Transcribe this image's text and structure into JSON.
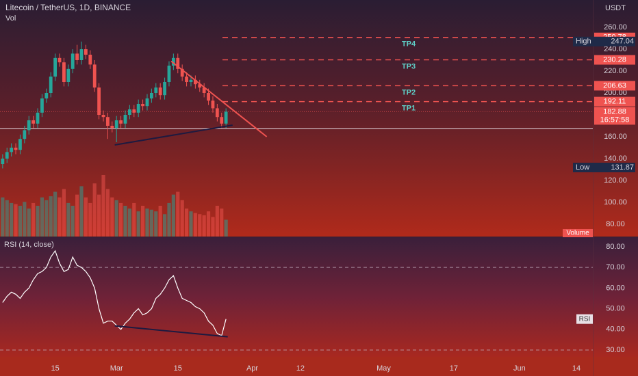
{
  "header": {
    "title": "Litecoin / TetherUS, 1D, BINANCE",
    "volume_label": "Vol",
    "currency": "USDT"
  },
  "chart_data": [
    {
      "type": "candlestick",
      "x": [
        34,
        35,
        36,
        37,
        38,
        39,
        40,
        41,
        42,
        43,
        44,
        45,
        46,
        47,
        48,
        49,
        50,
        51,
        52,
        53,
        54,
        55,
        56,
        57,
        58,
        59,
        60,
        61,
        62,
        63,
        64,
        65,
        66,
        67,
        68,
        69,
        70,
        71,
        72,
        73,
        74,
        75,
        76,
        77,
        78,
        79,
        80,
        81,
        82,
        83,
        84,
        85
      ],
      "open": [
        135,
        140,
        146,
        150,
        148,
        158,
        166,
        175,
        172,
        182,
        195,
        200,
        215,
        232,
        228,
        210,
        222,
        236,
        230,
        240,
        235,
        226,
        205,
        180,
        178,
        170,
        168,
        175,
        172,
        180,
        185,
        182,
        190,
        188,
        195,
        200,
        205,
        198,
        210,
        225,
        232,
        222,
        215,
        210,
        212,
        208,
        205,
        200,
        193,
        186,
        178,
        172
      ],
      "high": [
        144,
        150,
        154,
        154,
        162,
        170,
        179,
        179,
        186,
        199,
        204,
        219,
        236,
        236,
        232,
        226,
        240,
        244,
        247,
        244,
        239,
        230,
        209,
        184,
        182,
        174,
        179,
        179,
        184,
        189,
        189,
        194,
        194,
        199,
        204,
        209,
        209,
        214,
        229,
        236,
        236,
        226,
        219,
        216,
        216,
        212,
        209,
        204,
        197,
        190,
        182,
        186
      ],
      "low": [
        131,
        136,
        142,
        144,
        144,
        154,
        162,
        168,
        168,
        178,
        191,
        196,
        211,
        224,
        206,
        206,
        218,
        226,
        226,
        231,
        222,
        201,
        176,
        174,
        158,
        164,
        155,
        168,
        168,
        176,
        178,
        178,
        184,
        184,
        191,
        196,
        194,
        194,
        206,
        221,
        218,
        211,
        206,
        206,
        204,
        201,
        196,
        189,
        182,
        174,
        168,
        168
      ],
      "close": [
        140,
        146,
        150,
        148,
        158,
        166,
        175,
        172,
        182,
        195,
        200,
        215,
        232,
        228,
        210,
        222,
        236,
        230,
        240,
        235,
        226,
        205,
        180,
        178,
        170,
        168,
        175,
        172,
        180,
        185,
        182,
        190,
        188,
        195,
        200,
        205,
        198,
        210,
        225,
        232,
        222,
        215,
        210,
        212,
        208,
        205,
        200,
        193,
        186,
        178,
        172,
        182.88
      ],
      "volume": [
        70,
        65,
        60,
        58,
        55,
        62,
        50,
        60,
        55,
        70,
        65,
        72,
        80,
        70,
        85,
        60,
        55,
        75,
        90,
        70,
        60,
        95,
        75,
        110,
        85,
        70,
        65,
        60,
        55,
        50,
        60,
        45,
        55,
        50,
        48,
        45,
        55,
        40,
        60,
        75,
        80,
        65,
        50,
        45,
        42,
        40,
        38,
        45,
        35,
        55,
        50,
        30
      ],
      "up_color": "#26a69a",
      "down_color": "#ef5350",
      "xlim": [
        33.4,
        168.75
      ],
      "xticks": [
        {
          "value": 46,
          "label": "15"
        },
        {
          "value": 60,
          "label": "Mar"
        },
        {
          "value": 74,
          "label": "15"
        },
        {
          "value": 91,
          "label": "Apr"
        },
        {
          "value": 102,
          "label": "12"
        },
        {
          "value": 121,
          "label": "May"
        },
        {
          "value": 137,
          "label": "17"
        },
        {
          "value": 152,
          "label": "Jun"
        },
        {
          "value": 165,
          "label": "14"
        }
      ],
      "ylim": [
        68.75,
        285
      ],
      "yticks": [
        {
          "value": 80,
          "label": "80.00"
        },
        {
          "value": 100,
          "label": "100.00"
        },
        {
          "value": 120,
          "label": "120.00"
        },
        {
          "value": 140,
          "label": "140.00"
        },
        {
          "value": 160,
          "label": "160.00"
        },
        {
          "value": 180,
          "label": "180.00"
        },
        {
          "value": 200,
          "label": "200.00"
        },
        {
          "value": 220,
          "label": "220.00"
        },
        {
          "value": 240,
          "label": "240.00"
        },
        {
          "value": 260,
          "label": "260.00"
        }
      ],
      "levels": [
        {
          "price": 250.78,
          "name": "TP4"
        },
        {
          "price": 230.28,
          "name": "TP3"
        },
        {
          "price": 206.63,
          "name": "TP2"
        },
        {
          "price": 192.11,
          "name": "TP1"
        }
      ],
      "level_color": "#ef5350",
      "last_price": 182.88,
      "last_time": "16:57:58",
      "high_label": {
        "text": "High",
        "value": 247.04
      },
      "low_label": {
        "text": "Low",
        "value": 131.87
      },
      "volume_tag": "Volume",
      "support_line": 167.5,
      "trendlines": [
        {
          "x": [
            72.5,
            94.3
          ],
          "y": [
            229,
            160
          ],
          "color": "#ef5350"
        },
        {
          "x": [
            59.6,
            86.5
          ],
          "y": [
            152.5,
            170.6
          ],
          "color": "#1e1a40"
        }
      ]
    },
    {
      "type": "line",
      "title": "RSI (14, close)",
      "name": "RSI",
      "color": "#ffffff",
      "values": [
        53,
        56,
        58,
        57,
        55,
        58,
        60,
        64,
        67,
        68,
        70,
        75,
        78,
        72,
        68,
        69,
        75,
        71,
        70,
        68,
        65,
        60,
        50,
        43,
        44,
        44,
        42,
        40,
        43,
        45,
        48,
        50,
        47,
        48,
        50,
        55,
        57,
        60,
        64,
        66,
        60,
        55,
        54,
        53,
        51,
        50,
        48,
        44,
        42,
        38,
        37,
        45
      ],
      "ylim": [
        26.7,
        84.6
      ],
      "yticks": [
        {
          "value": 30,
          "label": "30.00"
        },
        {
          "value": 40,
          "label": "40.00"
        },
        {
          "value": 50,
          "label": "50.00"
        },
        {
          "value": 60,
          "label": "60.00"
        },
        {
          "value": 70,
          "label": "70.00"
        },
        {
          "value": 80,
          "label": "80.00"
        }
      ],
      "bands": [
        70,
        30
      ],
      "trendline": {
        "x": [
          59.6,
          85.4
        ],
        "y": [
          41.7,
          36.4
        ],
        "color": "#1e1a40"
      }
    }
  ]
}
